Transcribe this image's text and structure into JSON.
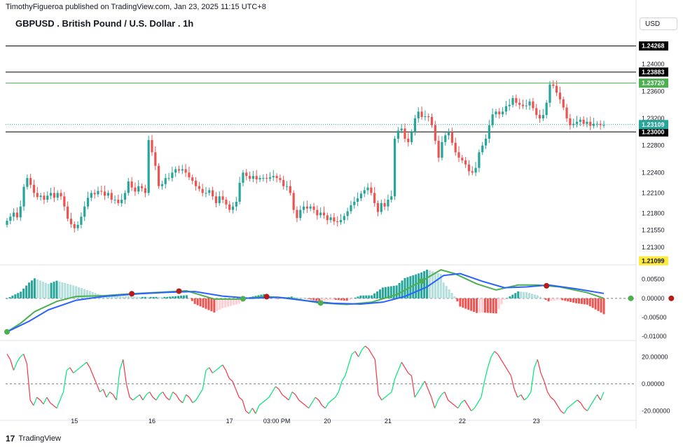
{
  "header": {
    "published": "TimothyFigueroa published on TradingView.com, Jan 23, 2025 11:15 UTC+8"
  },
  "title": "GBPUSD . British Pound / U.S. Dollar . 1h",
  "currency": "USD",
  "footer": {
    "brand": "TradingView",
    "logo_icon": "tradingview-logo-icon"
  },
  "colors": {
    "up": "#26a69a",
    "down": "#ef5350",
    "green_line": "#4caf50",
    "blue_line": "#2962ff",
    "red_line": "#b71c1c",
    "histo_up": "#26a69a",
    "histo_up_light": "#b2dfdb",
    "histo_down": "#ef5350",
    "histo_down_light": "#ffcdd2",
    "osc_up": "#00e676",
    "osc_down": "#f23645"
  },
  "chart_data": [
    {
      "type": "candlestick",
      "title": "GBPUSD . British Pound / U.S. Dollar . 1h",
      "x_ticks": [
        "15",
        "16",
        "17",
        "03:00 PM",
        "20",
        "21",
        "22",
        "23"
      ],
      "y_ticks": [
        "1.24000",
        "1.23600",
        "1.23200",
        "1.22800",
        "1.22400",
        "1.22100",
        "1.21800",
        "1.21550",
        "1.21300"
      ],
      "ylim": [
        1.2105,
        1.2445
      ],
      "horizontal_levels": [
        {
          "value": 1.24268,
          "label": "1.24268",
          "color": "#000000"
        },
        {
          "value": 1.23883,
          "label": "1.23883",
          "color": "#000000"
        },
        {
          "value": 1.2372,
          "label": "1.23720",
          "color": "#4caf50"
        },
        {
          "value": 1.23,
          "label": "1.23000",
          "color": "#000000"
        }
      ],
      "price_labels": [
        {
          "value": 1.23109,
          "label": "1.23109",
          "color": "#26a69a"
        },
        {
          "value": 1.21099,
          "label": "1.21099",
          "color": "#ffeb3b"
        }
      ],
      "closes": [
        1.2169,
        1.2175,
        1.2181,
        1.2174,
        1.219,
        1.2219,
        1.2232,
        1.2222,
        1.221,
        1.2204,
        1.2206,
        1.22,
        1.2206,
        1.221,
        1.2203,
        1.221,
        1.2205,
        1.219,
        1.2172,
        1.2164,
        1.2158,
        1.2163,
        1.2175,
        1.219,
        1.2203,
        1.221,
        1.2208,
        1.2213,
        1.2212,
        1.2206,
        1.221,
        1.22,
        1.22,
        1.2195,
        1.22,
        1.221,
        1.2227,
        1.2218,
        1.2212,
        1.222,
        1.2217,
        1.221,
        1.2288,
        1.227,
        1.225,
        1.222,
        1.2223,
        1.2232,
        1.2232,
        1.224,
        1.2245,
        1.2243,
        1.2245,
        1.224,
        1.2233,
        1.2228,
        1.222,
        1.2216,
        1.221,
        1.221,
        1.2214,
        1.2205,
        1.2195,
        1.2205,
        1.22,
        1.2193,
        1.2185,
        1.219,
        1.2197,
        1.2225,
        1.224,
        1.2235,
        1.2231,
        1.2235,
        1.223,
        1.2232,
        1.2232,
        1.2231,
        1.2233,
        1.2235,
        1.2232,
        1.2229,
        1.222,
        1.222,
        1.221,
        1.2185,
        1.2173,
        1.2185,
        1.219,
        1.2187,
        1.219,
        1.2185,
        1.2177,
        1.2181,
        1.2177,
        1.217,
        1.2174,
        1.2168,
        1.2167,
        1.217,
        1.2176,
        1.2183,
        1.2192,
        1.2197,
        1.2202,
        1.2209,
        1.2214,
        1.2218,
        1.221,
        1.2195,
        1.2182,
        1.2195,
        1.219,
        1.22,
        1.2205,
        1.229,
        1.2302,
        1.2305,
        1.229,
        1.2285,
        1.23,
        1.232,
        1.233,
        1.2322,
        1.2323,
        1.2322,
        1.231,
        1.2287,
        1.2262,
        1.2285,
        1.2295,
        1.23,
        1.2284,
        1.227,
        1.2262,
        1.2258,
        1.2252,
        1.2242,
        1.224,
        1.2247,
        1.227,
        1.228,
        1.229,
        1.231,
        1.2326,
        1.233,
        1.2326,
        1.233,
        1.2338,
        1.234,
        1.235,
        1.2343,
        1.234,
        1.2338,
        1.2339,
        1.2345,
        1.2335,
        1.2325,
        1.232,
        1.2325,
        1.2343,
        1.237,
        1.2368,
        1.2358,
        1.2348,
        1.2336,
        1.232,
        1.231,
        1.2312,
        1.2315,
        1.2318,
        1.2312,
        1.2315,
        1.2309,
        1.2312,
        1.2312,
        1.231,
        1.231
      ]
    },
    {
      "type": "line",
      "y_ticks": [
        "0.00500",
        "0.00000",
        "-0.00500",
        "-0.01000"
      ],
      "ylim": [
        -0.0107,
        0.0077
      ],
      "series": [
        {
          "name": "",
          "color": "#4caf50",
          "points": [
            [
              0,
              -0.0088
            ],
            [
              5,
              -0.0065
            ],
            [
              10,
              -0.0035
            ],
            [
              18,
              -0.0008
            ],
            [
              25,
              0.0005
            ],
            [
              35,
              0.0007
            ],
            [
              45,
              0.0012
            ],
            [
              55,
              0.0016
            ],
            [
              65,
              0.002
            ],
            [
              75,
              -0.0002
            ],
            [
              84,
              -0.0002
            ],
            [
              93,
              0.0005
            ],
            [
              103,
              0.0
            ],
            [
              113,
              -0.0012
            ],
            [
              123,
              -0.0016
            ],
            [
              132,
              -0.001
            ],
            [
              141,
              0.001
            ],
            [
              150,
              0.0045
            ],
            [
              157,
              0.0075
            ],
            [
              162,
              0.0065
            ],
            [
              170,
              0.0038
            ],
            [
              177,
              0.0022
            ],
            [
              185,
              0.0035
            ],
            [
              192,
              0.0035
            ],
            [
              200,
              0.003
            ],
            [
              210,
              0.0015
            ],
            [
              216,
              0.0
            ]
          ]
        },
        {
          "name": "",
          "color": "#2962ff",
          "points": [
            [
              0,
              -0.0088
            ],
            [
              8,
              -0.006
            ],
            [
              15,
              -0.003
            ],
            [
              25,
              -0.0005
            ],
            [
              35,
              0.0005
            ],
            [
              48,
              0.0012
            ],
            [
              58,
              0.0016
            ],
            [
              68,
              0.0018
            ],
            [
              78,
              0.0006
            ],
            [
              88,
              0.0
            ],
            [
              98,
              0.0003
            ],
            [
              108,
              -0.0006
            ],
            [
              118,
              -0.0013
            ],
            [
              128,
              -0.0015
            ],
            [
              136,
              -0.001
            ],
            [
              144,
              0.0005
            ],
            [
              152,
              0.003
            ],
            [
              158,
              0.006
            ],
            [
              164,
              0.0065
            ],
            [
              172,
              0.0045
            ],
            [
              180,
              0.0028
            ],
            [
              188,
              0.003
            ],
            [
              196,
              0.0035
            ],
            [
              206,
              0.0025
            ],
            [
              216,
              0.0013
            ]
          ]
        }
      ]
    },
    {
      "type": "line",
      "y_ticks": [
        "20.00000",
        "0.00000",
        "-20.00000"
      ],
      "ylim": [
        -26,
        30
      ],
      "series": [
        {
          "name": "",
          "points": [
            22,
            18,
            10,
            16,
            20,
            22,
            15,
            -12,
            -16,
            -10,
            -12,
            -15,
            -10,
            -14,
            -16,
            -18,
            -12,
            -6,
            10,
            12,
            8,
            10,
            12,
            14,
            16,
            12,
            6,
            0,
            -6,
            -4,
            -10,
            -6,
            -8,
            -12,
            10,
            18,
            0,
            -10,
            -12,
            -10,
            -8,
            -12,
            -8,
            -6,
            -10,
            -12,
            -8,
            -6,
            -10,
            -12,
            -6,
            -8,
            -12,
            -14,
            -8,
            -10,
            -14,
            -12,
            -8,
            -4,
            10,
            12,
            8,
            10,
            12,
            14,
            10,
            4,
            2,
            -4,
            -10,
            -12,
            -20,
            -22,
            -18,
            -22,
            -16,
            -14,
            -12,
            -10,
            -6,
            -2,
            -4,
            -8,
            -10,
            -12,
            -6,
            -8,
            -12,
            -14,
            -16,
            -18,
            -14,
            -10,
            -12,
            -16,
            -18,
            -14,
            -12,
            -10,
            -6,
            2,
            6,
            14,
            22,
            24,
            20,
            25,
            28,
            26,
            22,
            18,
            -8,
            -12,
            -10,
            -8,
            -6,
            4,
            10,
            16,
            12,
            8,
            6,
            -10,
            -6,
            -2,
            2,
            -4,
            -10,
            -18,
            -12,
            -8,
            -6,
            -12,
            -14,
            -16,
            -18,
            -14,
            -12,
            -16,
            -20,
            -18,
            -14,
            -10,
            2,
            12,
            20,
            24,
            22,
            18,
            14,
            10,
            6,
            -4,
            -10,
            -8,
            -12,
            -10,
            -6,
            12,
            18,
            8,
            2,
            -6,
            -10,
            -12,
            -16,
            -20,
            -22,
            -18,
            -16,
            -14,
            -12,
            -14,
            -18,
            -20,
            -16,
            -12,
            -8,
            -12,
            -6
          ]
        }
      ]
    }
  ]
}
